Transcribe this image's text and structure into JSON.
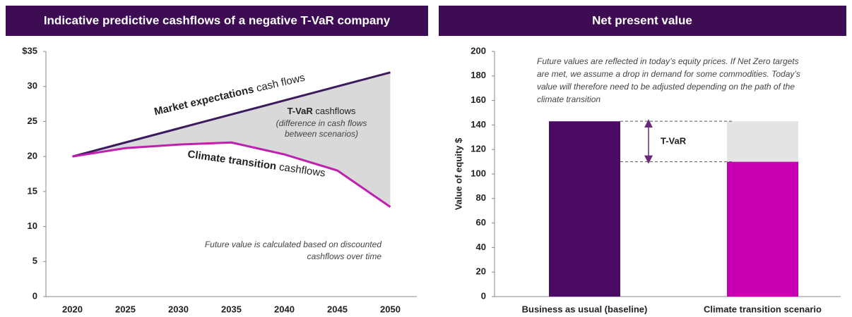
{
  "chart_data": [
    {
      "type": "line",
      "title": "Indicative predictive cashflows of a negative T-VaR company",
      "x": [
        2020,
        2025,
        2030,
        2035,
        2040,
        2045,
        2050
      ],
      "xlim": [
        2017.5,
        2052.5
      ],
      "xticks": [
        2020,
        2025,
        2030,
        2035,
        2040,
        2045,
        2050
      ],
      "ylim": [
        0,
        35
      ],
      "yticks": [
        0,
        5,
        10,
        15,
        20,
        25,
        30,
        {
          "value": 35,
          "label": "$35"
        }
      ],
      "series": [
        {
          "name_parts": [
            "Market expectations",
            "cash flows"
          ],
          "color": "#3c1a5e",
          "values": [
            20,
            22,
            24,
            26,
            28,
            30,
            32
          ]
        },
        {
          "name_parts": [
            "Climate transition",
            "cashflows"
          ],
          "color": "#c020b0",
          "values": [
            20,
            21.2,
            21.7,
            22,
            20.3,
            18,
            12.8
          ]
        }
      ],
      "fill_between_color": "#d9d9d9",
      "tvar_note": {
        "parts": [
          "T-VaR",
          "cashflows"
        ],
        "lines": [
          "(difference in cash flows",
          "between scenarios)"
        ]
      },
      "note_lines": [
        "Future value is calculated based on discounted",
        "cashflows over time"
      ]
    },
    {
      "type": "bar",
      "title": "Net present value",
      "categories": [
        "Business as usual (baseline)",
        "Climate transition scenario"
      ],
      "ylabel": "Value of equity $",
      "ylim": [
        0,
        200
      ],
      "yticks": [
        0,
        20,
        40,
        60,
        80,
        100,
        120,
        140,
        160,
        180,
        200
      ],
      "series": [
        {
          "values": [
            143,
            110
          ],
          "colors": [
            "#4b0a63",
            "#c800b4"
          ]
        },
        {
          "values": [
            null,
            33
          ],
          "color": "#e4e4e4"
        }
      ],
      "annotation": "T-VaR",
      "note_lines": [
        "Future values are reflected in today’s equity prices. If Net Zero targets",
        "are met, we assume a drop in demand for some commodities. Today’s",
        "value will therefore need to be adjusted depending on the path of the",
        "climate transition"
      ]
    }
  ]
}
